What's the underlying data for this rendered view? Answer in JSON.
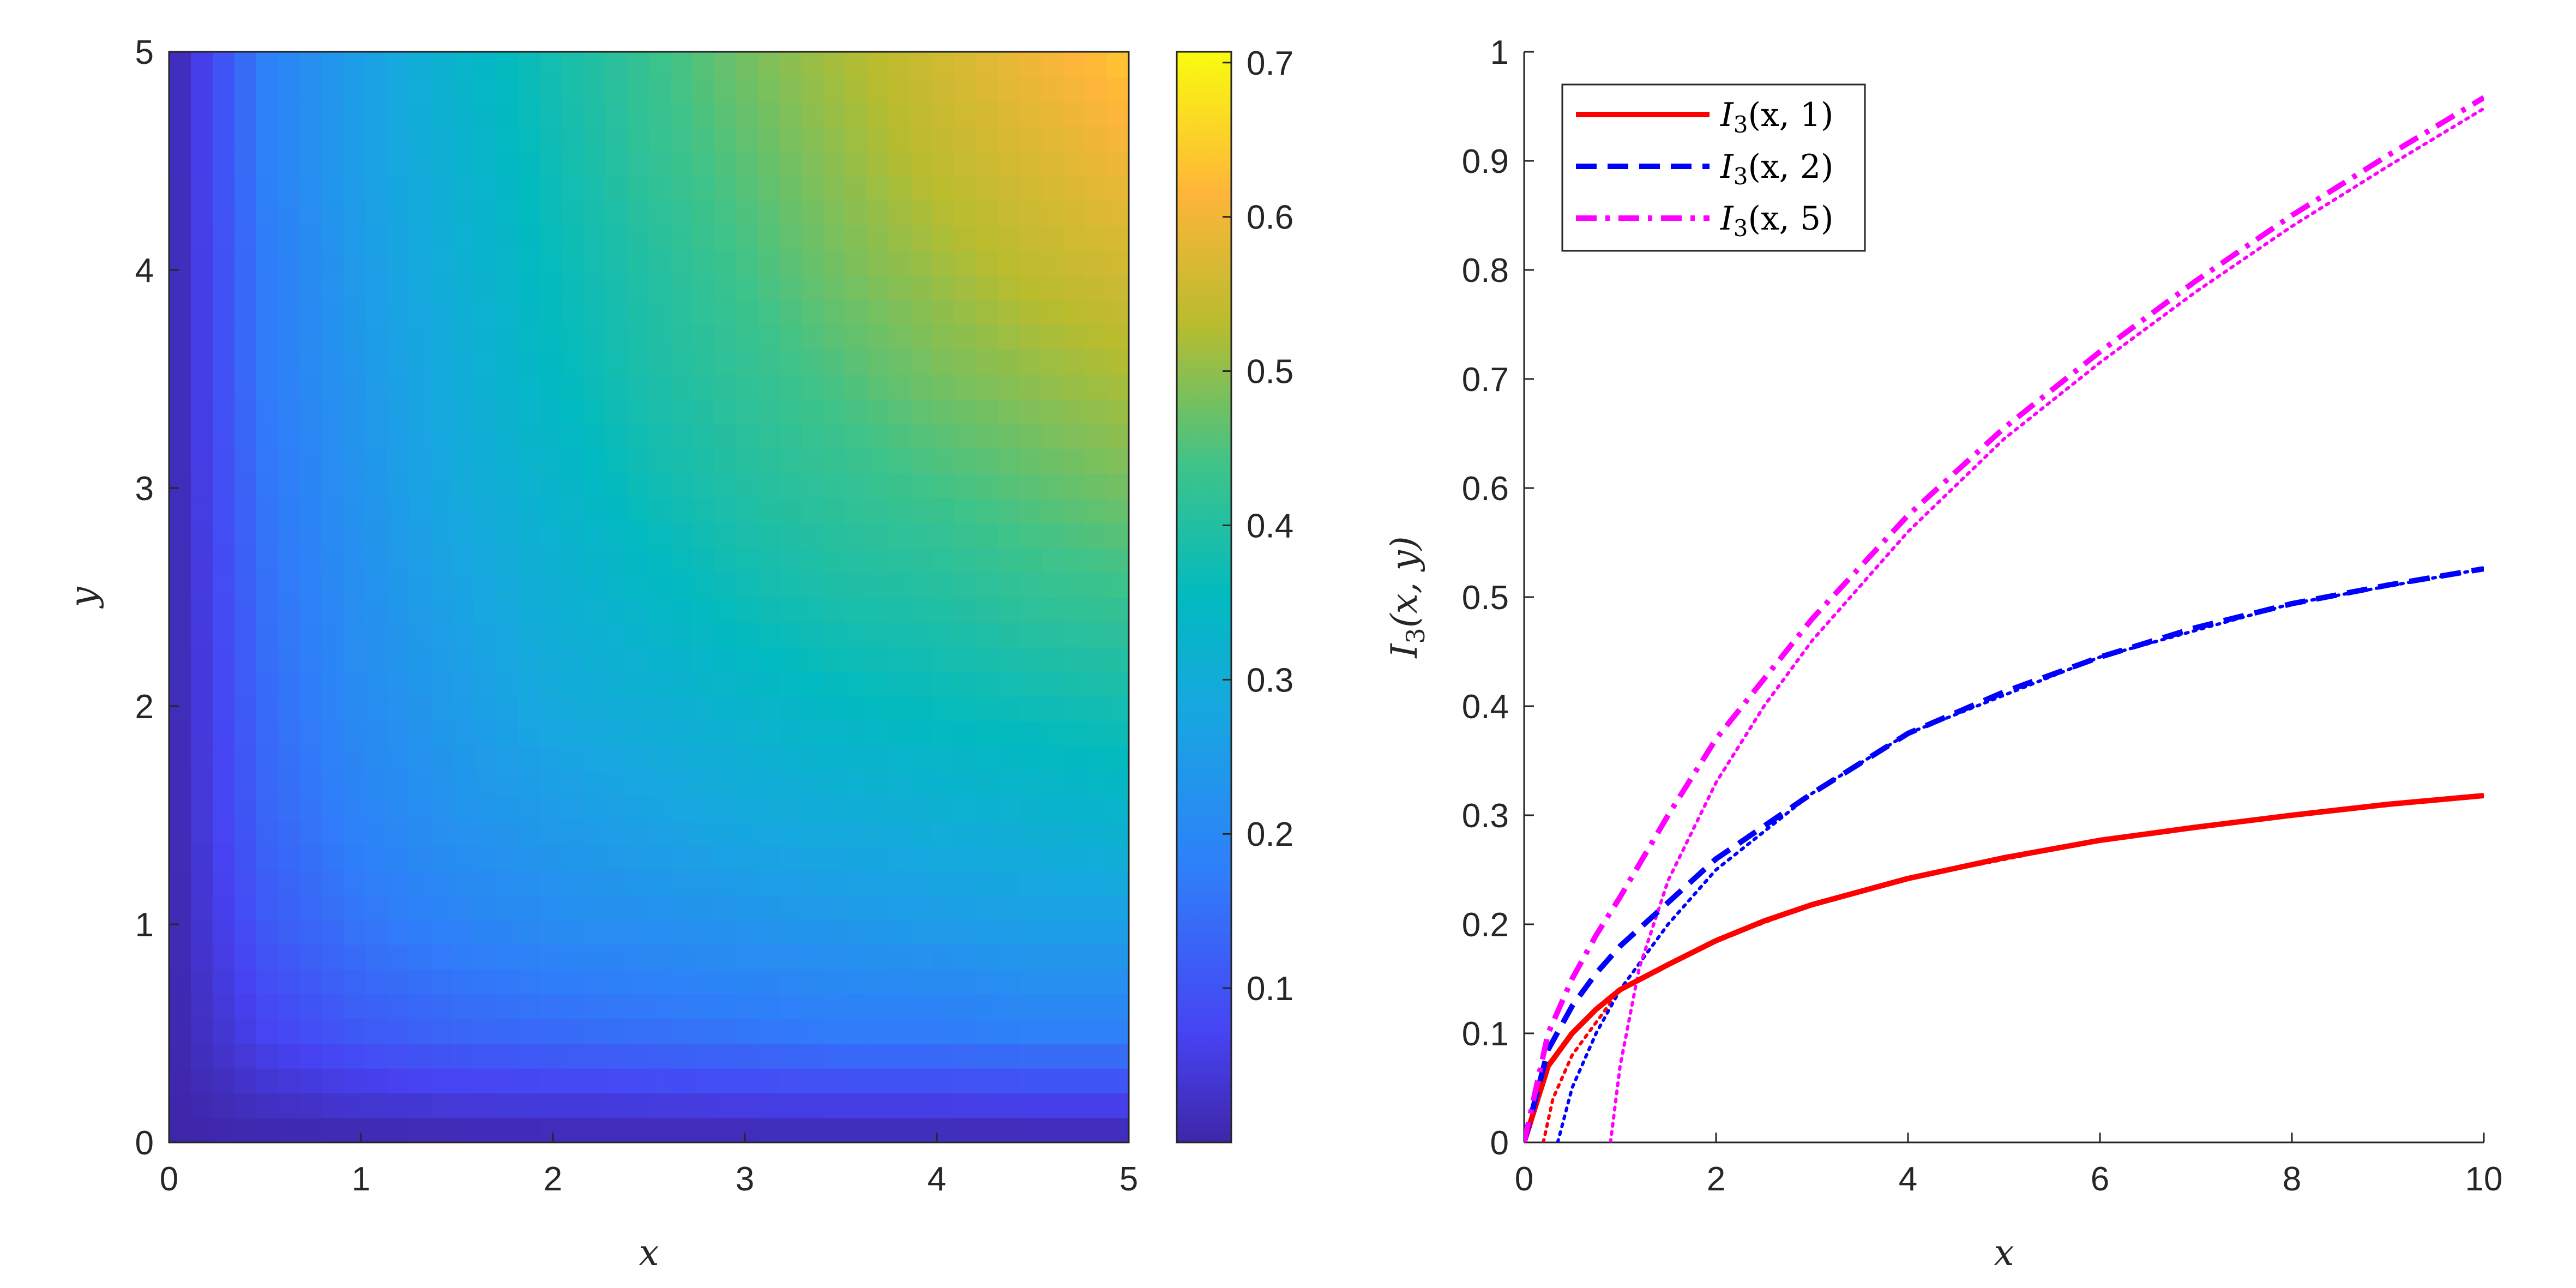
{
  "chart_data": [
    {
      "type": "heatmap",
      "xlabel": "x",
      "ylabel": "y",
      "xlim": [
        0,
        5
      ],
      "ylim": [
        0,
        5
      ],
      "xticks": [
        "0",
        "1",
        "2",
        "3",
        "4",
        "5"
      ],
      "yticks": [
        "0",
        "1",
        "2",
        "3",
        "4",
        "5"
      ],
      "colormap": "parula",
      "colorbar": {
        "ticks": [
          "0.1",
          "0.2",
          "0.3",
          "0.4",
          "0.5",
          "0.6",
          "0.7"
        ],
        "range": [
          0.0,
          0.707
        ]
      },
      "grid_x": [
        0,
        0.5,
        1,
        1.5,
        2,
        2.5,
        3,
        3.5,
        4,
        4.5,
        5
      ],
      "grid_y": [
        0,
        0.5,
        1,
        1.5,
        2,
        2.5,
        3,
        3.5,
        4,
        4.5,
        5
      ],
      "values": [
        [
          0.0,
          0.0,
          0.0,
          0.0,
          0.0,
          0.0,
          0.0,
          0.0,
          0.0,
          0.0,
          0.0
        ],
        [
          0.0,
          0.07,
          0.11,
          0.13,
          0.14,
          0.15,
          0.16,
          0.17,
          0.17,
          0.18,
          0.18
        ],
        [
          0.0,
          0.11,
          0.16,
          0.19,
          0.21,
          0.22,
          0.23,
          0.24,
          0.25,
          0.26,
          0.26
        ],
        [
          0.0,
          0.13,
          0.19,
          0.23,
          0.25,
          0.27,
          0.29,
          0.3,
          0.31,
          0.32,
          0.33
        ],
        [
          0.0,
          0.14,
          0.21,
          0.25,
          0.29,
          0.31,
          0.33,
          0.35,
          0.36,
          0.37,
          0.38
        ],
        [
          0.0,
          0.15,
          0.22,
          0.27,
          0.31,
          0.34,
          0.37,
          0.39,
          0.4,
          0.42,
          0.43
        ],
        [
          0.0,
          0.16,
          0.23,
          0.29,
          0.33,
          0.37,
          0.4,
          0.42,
          0.44,
          0.46,
          0.48
        ],
        [
          0.0,
          0.17,
          0.24,
          0.3,
          0.35,
          0.39,
          0.42,
          0.45,
          0.48,
          0.5,
          0.52
        ],
        [
          0.0,
          0.17,
          0.25,
          0.31,
          0.36,
          0.4,
          0.44,
          0.48,
          0.51,
          0.54,
          0.56
        ],
        [
          0.0,
          0.18,
          0.26,
          0.32,
          0.37,
          0.42,
          0.46,
          0.5,
          0.54,
          0.57,
          0.6
        ],
        [
          0.0,
          0.18,
          0.26,
          0.33,
          0.38,
          0.43,
          0.48,
          0.52,
          0.56,
          0.6,
          0.64
        ]
      ]
    },
    {
      "type": "line",
      "xlabel": "x",
      "ylabel": "I3(x,y)",
      "xlim": [
        0,
        10
      ],
      "ylim": [
        0,
        1
      ],
      "xticks": [
        "0",
        "2",
        "4",
        "6",
        "8",
        "10"
      ],
      "yticks": [
        "0",
        "0.1",
        "0.2",
        "0.3",
        "0.4",
        "0.5",
        "0.6",
        "0.7",
        "0.8",
        "0.9",
        "1"
      ],
      "legend_position": "top-left",
      "x": [
        0,
        0.25,
        0.5,
        0.75,
        1,
        1.5,
        2,
        2.5,
        3,
        4,
        5,
        6,
        7,
        8,
        9,
        10
      ],
      "series": [
        {
          "name": "I3(x,1)",
          "legend_base": "I",
          "legend_sub": "3",
          "legend_args": "(x, 1)",
          "color": "#ff0000",
          "style": "solid",
          "values": [
            0,
            0.07,
            0.1,
            0.122,
            0.14,
            0.163,
            0.185,
            0.203,
            0.218,
            0.242,
            0.261,
            0.277,
            0.289,
            0.3,
            0.31,
            0.318
          ]
        },
        {
          "name": "I3(x,2)",
          "legend_base": "I",
          "legend_sub": "3",
          "legend_args": "(x, 2)",
          "color": "#0000ff",
          "style": "dashed",
          "values": [
            0,
            0.085,
            0.125,
            0.155,
            0.18,
            0.22,
            0.26,
            0.29,
            0.32,
            0.375,
            0.413,
            0.445,
            0.472,
            0.494,
            0.511,
            0.526
          ]
        },
        {
          "name": "I3(x,5)",
          "legend_base": "I",
          "legend_sub": "3",
          "legend_args": "(x, 5)",
          "color": "#ff00ff",
          "style": "dashdot",
          "values": [
            0,
            0.1,
            0.15,
            0.19,
            0.225,
            0.3,
            0.37,
            0.425,
            0.48,
            0.575,
            0.655,
            0.725,
            0.79,
            0.85,
            0.905,
            0.958
          ]
        }
      ],
      "dotted_series": [
        {
          "color": "#ff0000",
          "x": [
            0.2,
            0.3,
            0.5,
            0.75,
            1,
            1.5,
            2,
            3,
            4,
            6,
            8,
            10
          ],
          "values": [
            0,
            0.04,
            0.08,
            0.11,
            0.14,
            0.163,
            0.185,
            0.218,
            0.242,
            0.277,
            0.3,
            0.318
          ]
        },
        {
          "color": "#0000ff",
          "x": [
            0.35,
            0.5,
            0.75,
            1,
            1.5,
            2,
            3,
            4,
            6,
            8,
            10
          ],
          "values": [
            0,
            0.05,
            0.1,
            0.14,
            0.2,
            0.25,
            0.32,
            0.375,
            0.445,
            0.494,
            0.526
          ]
        },
        {
          "color": "#ff00ff",
          "x": [
            0.9,
            1.0,
            1.2,
            1.5,
            2,
            2.5,
            3,
            4,
            5,
            6,
            7,
            8,
            9,
            10
          ],
          "values": [
            0,
            0.07,
            0.16,
            0.24,
            0.33,
            0.4,
            0.46,
            0.56,
            0.645,
            0.715,
            0.78,
            0.84,
            0.895,
            0.948
          ]
        }
      ]
    }
  ]
}
